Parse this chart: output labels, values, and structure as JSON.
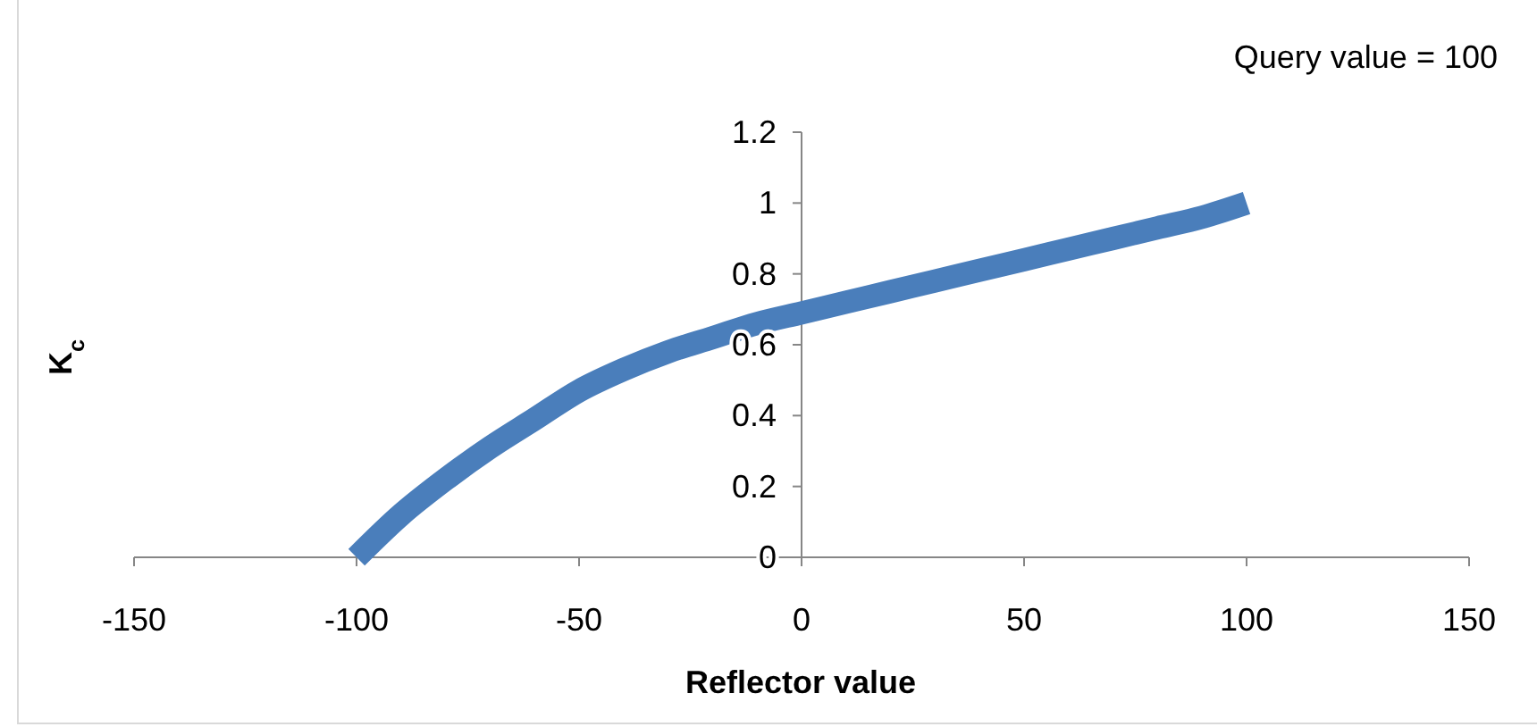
{
  "chart_data": {
    "type": "line",
    "xlabel": "Reflector value",
    "ylabel": "K$_{c}$",
    "annotations": [
      "Query value = 100"
    ],
    "x": [
      -100,
      -90,
      -80,
      -70,
      -60,
      -50,
      -40,
      -30,
      -20,
      -10,
      0,
      10,
      20,
      30,
      40,
      50,
      60,
      70,
      80,
      90,
      100
    ],
    "series": [
      {
        "color": "#4a7ebb",
        "values": [
          0,
          0.12,
          0.22,
          0.31,
          0.39,
          0.47,
          0.53,
          0.58,
          0.62,
          0.66,
          0.69,
          0.72,
          0.75,
          0.78,
          0.81,
          0.84,
          0.87,
          0.9,
          0.93,
          0.96,
          1
        ]
      }
    ],
    "xlim": [
      -150,
      150
    ],
    "xticks": [
      -150,
      -100,
      -50,
      0,
      50,
      100,
      150
    ],
    "ylim": [
      0,
      1.2
    ],
    "yticks": [
      0,
      0.2,
      0.4,
      0.6,
      0.8,
      1,
      1.2
    ],
    "grid": false,
    "marker": "none",
    "line_style": "solid"
  }
}
